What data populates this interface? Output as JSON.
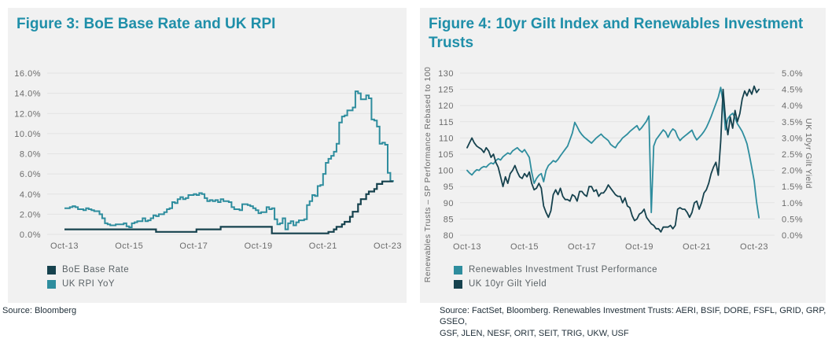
{
  "colors": {
    "teal": "#2e8d9e",
    "navy": "#16424e",
    "title": "#1f8fa9",
    "panel_bg": "#f1f1f1",
    "grid": "#e3e3e3",
    "tick_text": "#6b6b6b",
    "source_text": "#1f2e38"
  },
  "panels": [
    {
      "title": "Figure 3: BoE Base Rate and UK RPI",
      "legend": [
        {
          "label": "BoE Base Rate",
          "color": "navy"
        },
        {
          "label": "UK RPI YoY",
          "color": "teal"
        }
      ],
      "source_lines": [
        "Source: Bloomberg"
      ]
    },
    {
      "title": "Figure 4: 10yr Gilt Index and Renewables Investment Trusts",
      "ylabel_left": "Renewables Trusts – SP Performance Rebased to 100",
      "ylabel_right": "UK 10yr Gilt Yield",
      "legend": [
        {
          "label": "Renewables Investment Trust Performance",
          "color": "teal"
        },
        {
          "label": "UK 10yr Gilt Yield",
          "color": "navy"
        }
      ],
      "source_lines": [
        "Source: FactSet, Bloomberg. Renewables Investment Trusts:  AERI, BSIF, DORE, FSFL, GRID, GRP, GSEO,",
        "GSF, JLEN, NESF, ORIT, SEIT, TRIG, UKW, USF"
      ]
    }
  ],
  "chart_data": [
    {
      "type": "line",
      "title": "Figure 3: BoE Base Rate and UK RPI",
      "grid": true,
      "legend_position": "bottom-left",
      "x_start": "Oct-13",
      "x_step_months": 1,
      "x_ticks": {
        "indices": [
          0,
          24,
          48,
          72,
          96,
          120
        ],
        "labels": [
          "Oct-13",
          "Oct-15",
          "Oct-17",
          "Oct-19",
          "Oct-21",
          "Oct-23"
        ]
      },
      "axes": {
        "left": {
          "lim": [
            0,
            16
          ],
          "tick_values": [
            0,
            2,
            4,
            6,
            8,
            10,
            12,
            14,
            16
          ],
          "tick_labels": [
            "0.0%",
            "2.0%",
            "4.0%",
            "6.0%",
            "8.0%",
            "10.0%",
            "12.0%",
            "14.0%",
            "16.0%"
          ]
        }
      },
      "series": [
        {
          "name": "UK RPI YoY",
          "color": "teal",
          "step": true,
          "width": 2,
          "values": [
            2.6,
            2.6,
            2.7,
            2.8,
            2.7,
            2.5,
            2.5,
            2.4,
            2.6,
            2.5,
            2.4,
            2.3,
            2.3,
            2.0,
            1.6,
            1.1,
            1.0,
            0.9,
            0.9,
            1.0,
            1.0,
            1.0,
            1.1,
            0.8,
            0.7,
            1.1,
            1.2,
            1.3,
            1.3,
            1.6,
            1.3,
            1.4,
            1.6,
            1.9,
            1.8,
            2.0,
            2.0,
            2.2,
            2.5,
            2.6,
            3.2,
            3.1,
            3.5,
            3.7,
            3.5,
            3.6,
            3.9,
            3.9,
            4.0,
            3.9,
            4.1,
            4.0,
            3.6,
            3.3,
            3.4,
            3.3,
            3.4,
            3.2,
            3.5,
            3.3,
            3.3,
            3.2,
            2.7,
            2.5,
            2.5,
            2.4,
            3.0,
            3.0,
            2.9,
            2.8,
            2.6,
            2.4,
            2.1,
            2.2,
            2.2,
            2.7,
            2.5,
            2.6,
            1.5,
            1.0,
            1.1,
            1.6,
            0.5,
            1.1,
            1.3,
            0.9,
            1.2,
            1.4,
            1.4,
            1.5,
            2.9,
            3.3,
            3.9,
            3.8,
            4.8,
            4.9,
            6.0,
            7.1,
            7.5,
            7.8,
            8.2,
            9.0,
            11.1,
            11.7,
            11.8,
            12.3,
            12.3,
            12.6,
            14.2,
            14.0,
            13.4,
            13.4,
            13.8,
            13.5,
            11.4,
            11.3,
            10.7,
            9.0,
            9.1,
            8.9,
            6.1,
            5.3,
            5.2
          ]
        },
        {
          "name": "BoE Base Rate",
          "color": "navy",
          "step": true,
          "width": 2.2,
          "values": [
            0.5,
            0.5,
            0.5,
            0.5,
            0.5,
            0.5,
            0.5,
            0.5,
            0.5,
            0.5,
            0.5,
            0.5,
            0.5,
            0.5,
            0.5,
            0.5,
            0.5,
            0.5,
            0.5,
            0.5,
            0.5,
            0.5,
            0.5,
            0.5,
            0.5,
            0.5,
            0.5,
            0.5,
            0.5,
            0.5,
            0.5,
            0.5,
            0.5,
            0.5,
            0.25,
            0.25,
            0.25,
            0.25,
            0.25,
            0.25,
            0.25,
            0.25,
            0.25,
            0.25,
            0.25,
            0.25,
            0.25,
            0.25,
            0.25,
            0.5,
            0.5,
            0.5,
            0.5,
            0.5,
            0.5,
            0.5,
            0.5,
            0.5,
            0.75,
            0.75,
            0.75,
            0.75,
            0.75,
            0.75,
            0.75,
            0.75,
            0.75,
            0.75,
            0.75,
            0.75,
            0.75,
            0.75,
            0.75,
            0.75,
            0.75,
            0.75,
            0.75,
            0.1,
            0.1,
            0.1,
            0.1,
            0.1,
            0.1,
            0.1,
            0.1,
            0.1,
            0.1,
            0.1,
            0.1,
            0.1,
            0.1,
            0.1,
            0.1,
            0.1,
            0.1,
            0.1,
            0.1,
            0.1,
            0.25,
            0.25,
            0.5,
            0.75,
            0.75,
            1.0,
            1.25,
            1.25,
            1.75,
            2.25,
            2.25,
            3.0,
            3.5,
            3.5,
            4.0,
            4.25,
            4.25,
            4.5,
            5.0,
            5.0,
            5.25,
            5.25,
            5.25,
            5.25,
            5.25
          ]
        }
      ]
    },
    {
      "type": "line",
      "title": "Figure 4: 10yr Gilt Index and Renewables Investment Trusts",
      "grid": true,
      "legend_position": "bottom-left",
      "x_start": "Oct-13",
      "x_step_months": 1,
      "x_ticks": {
        "indices": [
          0,
          24,
          48,
          72,
          96,
          120
        ],
        "labels": [
          "Oct-13",
          "Oct-15",
          "Oct-17",
          "Oct-19",
          "Oct-21",
          "Oct-23"
        ]
      },
      "axes": {
        "left": {
          "label": "Renewables Trusts – SP Performance Rebased to 100",
          "lim": [
            80,
            130
          ],
          "tick_values": [
            80,
            85,
            90,
            95,
            100,
            105,
            110,
            115,
            120,
            125,
            130
          ],
          "tick_labels": [
            "80",
            "85",
            "90",
            "95",
            "100",
            "105",
            "110",
            "115",
            "120",
            "125",
            "130"
          ]
        },
        "right": {
          "label": "UK 10yr Gilt Yield",
          "lim": [
            0,
            5
          ],
          "tick_values": [
            0,
            0.5,
            1.0,
            1.5,
            2.0,
            2.5,
            3.0,
            3.5,
            4.0,
            4.5,
            5.0
          ],
          "tick_labels": [
            "0.0%",
            "0.5%",
            "1.0%",
            "1.5%",
            "2.0%",
            "2.5%",
            "3.0%",
            "3.5%",
            "4.0%",
            "4.5%",
            "5.0%"
          ]
        }
      },
      "series": [
        {
          "name": "Renewables Investment Trust Performance",
          "color": "teal",
          "axis": "left",
          "width": 1.8,
          "values": [
            100,
            99.2,
            98.6,
            99.5,
            100.2,
            100.0,
            100.8,
            101.2,
            101.0,
            101.8,
            102.3,
            102.0,
            103.0,
            103.6,
            103.2,
            104.2,
            104.8,
            105.4,
            105.0,
            106.0,
            106.5,
            107.0,
            106.2,
            105.6,
            106.4,
            105.2,
            104.0,
            99.5,
            96.0,
            97.5,
            98.5,
            99.0,
            96.5,
            100.0,
            101.5,
            102.2,
            103.0,
            102.6,
            103.4,
            104.5,
            105.5,
            106.5,
            107.5,
            109.5,
            111.5,
            114.8,
            113.5,
            112.0,
            111.0,
            110.2,
            109.6,
            109.0,
            108.4,
            109.2,
            110.0,
            110.6,
            111.2,
            110.4,
            109.8,
            109.2,
            108.0,
            107.4,
            107.0,
            108.2,
            109.0,
            110.0,
            110.6,
            111.2,
            112.0,
            112.6,
            113.2,
            113.8,
            112.4,
            113.2,
            114.2,
            115.2,
            116.8,
            87.0,
            107.5,
            109.5,
            110.5,
            111.5,
            112.5,
            111.8,
            110.2,
            111.8,
            112.8,
            112.2,
            110.4,
            109.2,
            110.0,
            110.6,
            111.2,
            111.8,
            112.4,
            110.6,
            109.4,
            110.2,
            111.0,
            112.0,
            113.2,
            114.8,
            116.6,
            118.6,
            120.6,
            122.6,
            125.6,
            121.0,
            112.5,
            116.0,
            117.0,
            117.6,
            116.2,
            114.4,
            113.2,
            112.0,
            110.2,
            108.2,
            104.6,
            100.8,
            96.8,
            90.2,
            85.4
          ]
        },
        {
          "name": "UK 10yr Gilt Yield",
          "color": "navy",
          "axis": "right",
          "width": 1.8,
          "values": [
            2.7,
            2.85,
            3.0,
            2.85,
            2.75,
            2.7,
            2.65,
            2.55,
            2.7,
            2.6,
            2.4,
            2.5,
            2.25,
            2.1,
            1.8,
            1.5,
            1.8,
            1.6,
            1.9,
            2.0,
            2.15,
            1.95,
            1.8,
            1.75,
            1.9,
            1.8,
            1.95,
            1.6,
            1.4,
            1.45,
            1.6,
            1.45,
            0.9,
            0.7,
            0.55,
            0.75,
            1.25,
            1.4,
            1.25,
            1.45,
            1.2,
            1.1,
            1.1,
            1.05,
            1.25,
            1.2,
            1.05,
            1.35,
            1.35,
            1.25,
            1.2,
            1.5,
            1.5,
            1.35,
            1.4,
            1.2,
            1.3,
            1.3,
            1.4,
            1.55,
            1.45,
            1.35,
            1.25,
            1.2,
            1.2,
            1.0,
            1.15,
            0.9,
            0.85,
            0.6,
            0.45,
            0.5,
            0.65,
            0.7,
            0.8,
            0.55,
            0.45,
            0.35,
            0.3,
            0.2,
            0.2,
            0.1,
            0.25,
            0.25,
            0.25,
            0.3,
            0.2,
            0.3,
            0.8,
            0.85,
            0.8,
            0.8,
            0.7,
            0.55,
            0.7,
            1.0,
            1.05,
            0.8,
            1.0,
            1.3,
            1.4,
            1.6,
            1.9,
            2.1,
            2.25,
            1.85,
            2.9,
            4.5,
            3.6,
            3.1,
            3.65,
            3.3,
            3.85,
            3.5,
            3.75,
            4.2,
            4.45,
            4.3,
            4.5,
            4.35,
            4.6,
            4.4,
            4.5
          ]
        }
      ]
    }
  ]
}
